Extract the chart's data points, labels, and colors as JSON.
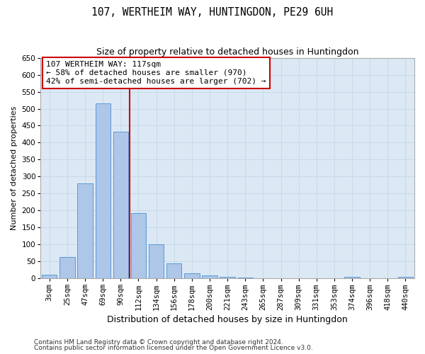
{
  "title": "107, WERTHEIM WAY, HUNTINGDON, PE29 6UH",
  "subtitle": "Size of property relative to detached houses in Huntingdon",
  "xlabel": "Distribution of detached houses by size in Huntingdon",
  "ylabel": "Number of detached properties",
  "footnote1": "Contains HM Land Registry data © Crown copyright and database right 2024.",
  "footnote2": "Contains public sector information licensed under the Open Government Licence v3.0.",
  "categories": [
    "3sqm",
    "25sqm",
    "47sqm",
    "69sqm",
    "90sqm",
    "112sqm",
    "134sqm",
    "156sqm",
    "178sqm",
    "200sqm",
    "221sqm",
    "243sqm",
    "265sqm",
    "287sqm",
    "309sqm",
    "331sqm",
    "353sqm",
    "374sqm",
    "396sqm",
    "418sqm",
    "440sqm"
  ],
  "values": [
    10,
    63,
    280,
    515,
    433,
    193,
    101,
    45,
    15,
    9,
    5,
    2,
    1,
    0,
    0,
    0,
    0,
    5,
    0,
    0,
    5
  ],
  "bar_color": "#aec6e8",
  "bar_edge_color": "#5b9bd5",
  "grid_color": "#c8daea",
  "background_color": "#dce9f5",
  "vline_color": "#cc0000",
  "vline_x_idx": 4.5,
  "annotation_line1": "107 WERTHEIM WAY: 117sqm",
  "annotation_line2": "← 58% of detached houses are smaller (970)",
  "annotation_line3": "42% of semi-detached houses are larger (702) →",
  "annotation_box_color": "#ffffff",
  "annotation_box_edge": "#cc0000",
  "ylim": [
    0,
    650
  ],
  "yticks": [
    0,
    50,
    100,
    150,
    200,
    250,
    300,
    350,
    400,
    450,
    500,
    550,
    600,
    650
  ],
  "title_fontsize": 10.5,
  "subtitle_fontsize": 9,
  "ylabel_fontsize": 8,
  "xlabel_fontsize": 9,
  "tick_fontsize": 7.5,
  "annot_fontsize": 8,
  "footnote_fontsize": 6.5
}
